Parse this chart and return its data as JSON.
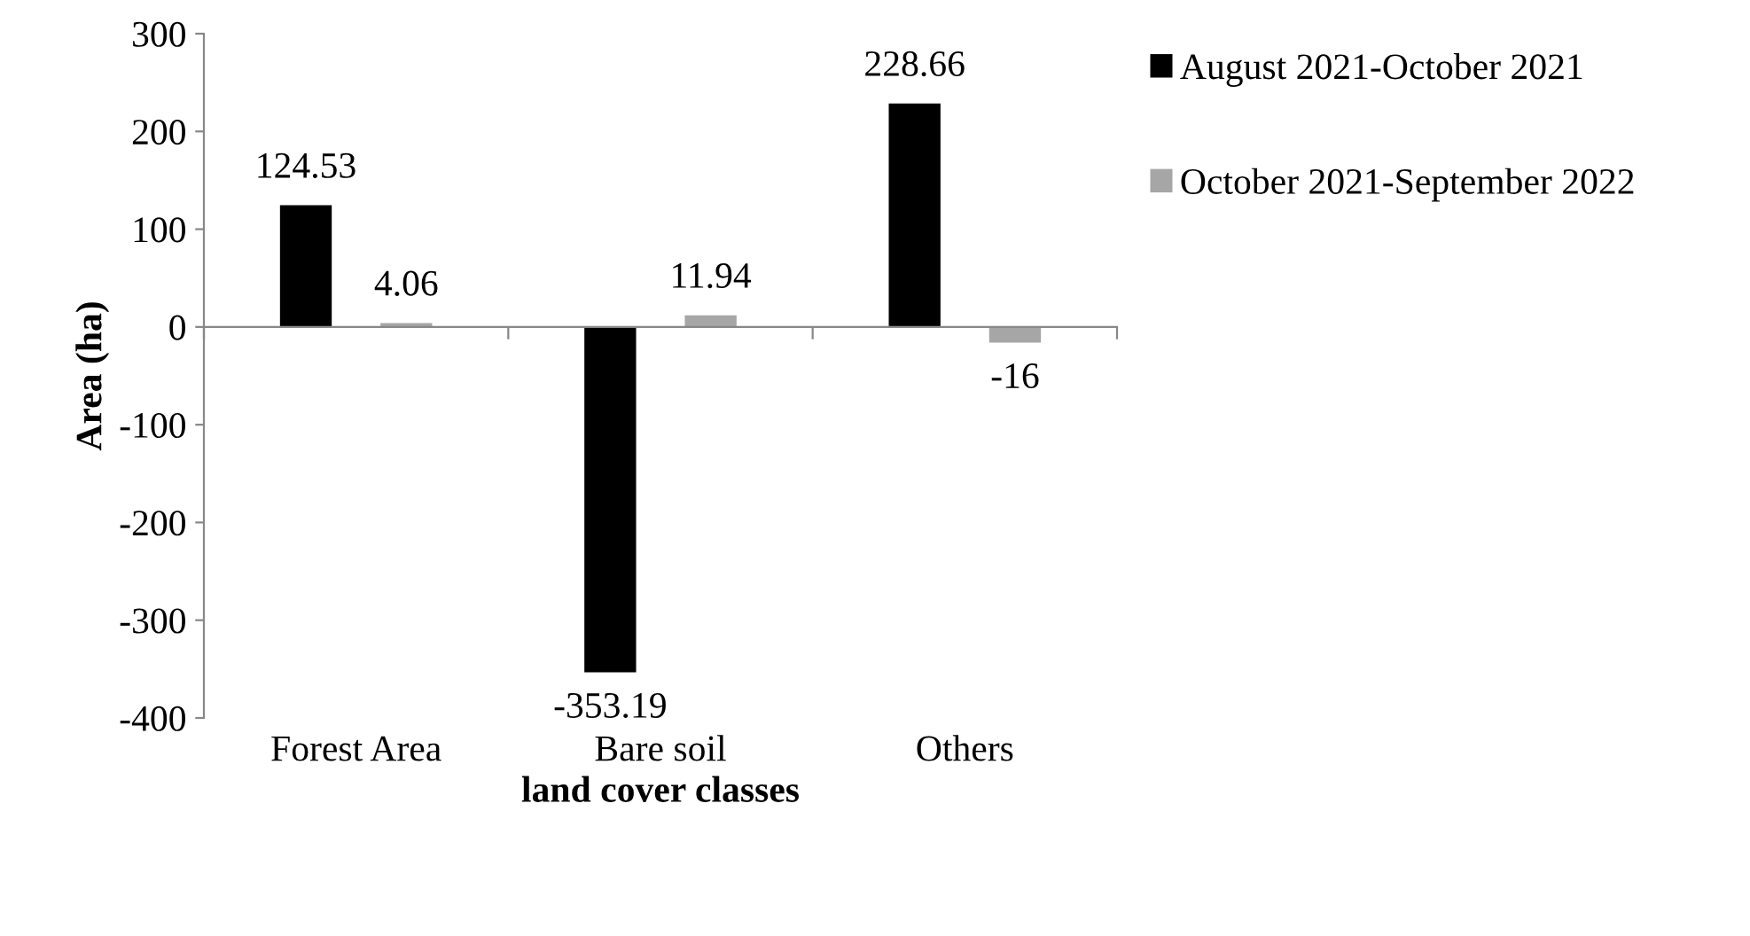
{
  "chart_data": {
    "type": "bar",
    "xlabel": "land cover classes",
    "ylabel": "Area (ha)",
    "categories": [
      "Forest Area",
      "Bare soil",
      "Others"
    ],
    "series": [
      {
        "name": "August 2021-October 2021",
        "color": "#000000",
        "values": [
          124.53,
          -353.19,
          228.66
        ]
      },
      {
        "name": "October 2021-September 2022",
        "color": "#a6a6a6",
        "values": [
          4.06,
          11.94,
          -16
        ]
      }
    ],
    "ylim": [
      -400,
      300
    ],
    "yticks": [
      -400,
      -300,
      -200,
      -100,
      0,
      100,
      200,
      300
    ],
    "data_labels": true,
    "legend": "right"
  }
}
